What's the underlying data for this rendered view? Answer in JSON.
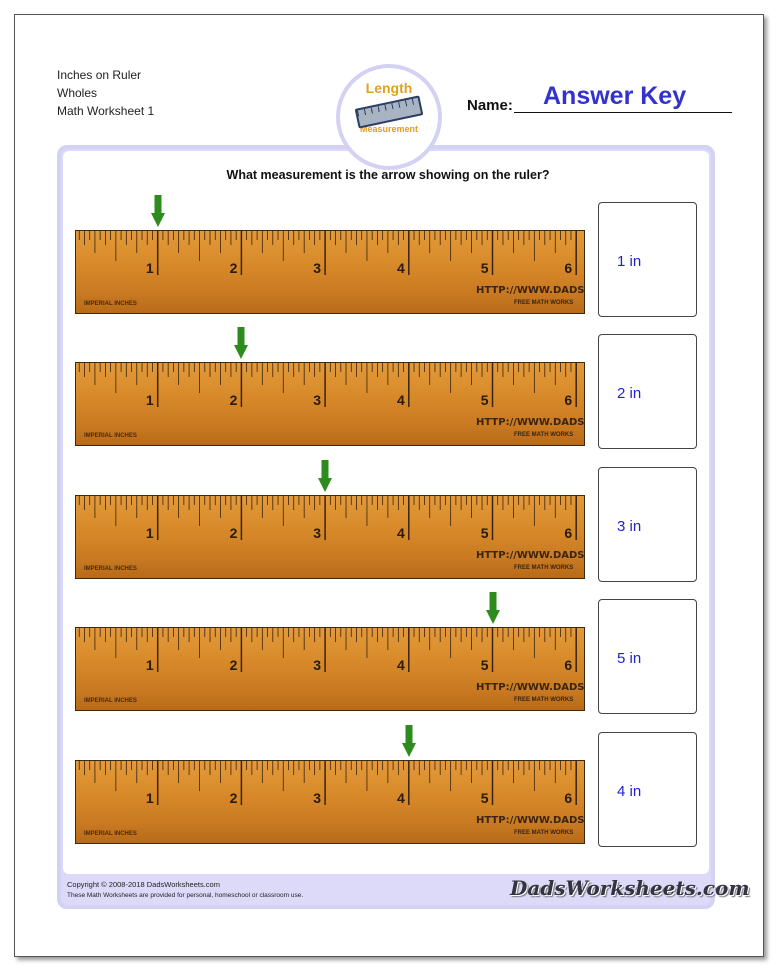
{
  "header": {
    "line1": "Inches on Ruler",
    "line2": "Wholes",
    "line3": "Math Worksheet 1"
  },
  "logo": {
    "top": "Length",
    "bottom": "Measurement"
  },
  "name_label": "Name:",
  "answer_key": "Answer Key",
  "question": "What measurement is the arrow showing on the ruler?",
  "ruler": {
    "numbers": [
      "1",
      "2",
      "3",
      "4",
      "5",
      "6"
    ],
    "left_text": "IMPERIAL INCHES",
    "url_text": "HTTP://WWW.DADS",
    "sub_text": "FREE MATH WORKS",
    "arrow_color": "#2e8b1e"
  },
  "problems": [
    {
      "arrow_inches": 1,
      "answer": "1 in"
    },
    {
      "arrow_inches": 2,
      "answer": "2 in"
    },
    {
      "arrow_inches": 3,
      "answer": "3 in"
    },
    {
      "arrow_inches": 5,
      "answer": "5 in"
    },
    {
      "arrow_inches": 4,
      "answer": "4 in"
    }
  ],
  "footer": {
    "copyright": "Copyright © 2008-2018 DadsWorksheets.com",
    "note": "These Math Worksheets are provided for personal, homeschool or classroom use.",
    "brand": "DadsWorksheets.com"
  }
}
